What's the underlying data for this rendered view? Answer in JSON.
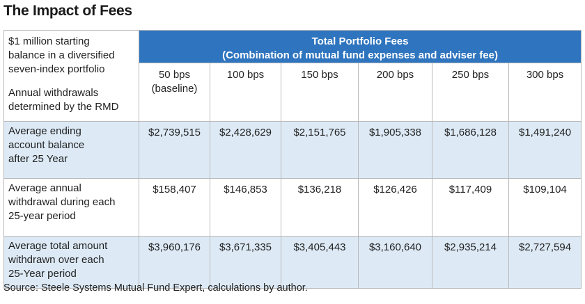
{
  "title": "The Impact of Fees",
  "corner": {
    "line1": "$1 million starting",
    "line2": "balance in a diversified",
    "line3": "seven-index portfolio",
    "line4": "Annual withdrawals",
    "line5": "determined by the RMD"
  },
  "header": {
    "title": "Total Portfolio Fees",
    "subtitle": "(Combination of mutual fund expenses and adviser fee)"
  },
  "columns": [
    {
      "label": "50 bps",
      "note": "(baseline)"
    },
    {
      "label": "100 bps",
      "note": ""
    },
    {
      "label": "150 bps",
      "note": ""
    },
    {
      "label": "200 bps",
      "note": ""
    },
    {
      "label": "250 bps",
      "note": ""
    },
    {
      "label": "300 bps",
      "note": ""
    }
  ],
  "rows": [
    {
      "label_lines": [
        "Average ending",
        "account balance",
        "after 25 Year"
      ],
      "values": [
        "$2,739,515",
        "$2,428,629",
        "$2,151,765",
        "$1,905,338",
        "$1,686,128",
        "$1,491,240"
      ]
    },
    {
      "label_lines": [
        "Average annual",
        "withdrawal during each",
        "25-year period"
      ],
      "values": [
        "$158,407",
        "$146,853",
        "$136,218",
        "$126,426",
        "$117,409",
        "$109,104"
      ]
    },
    {
      "label_lines": [
        "Average total amount",
        "withdrawn over each",
        "25-Year period"
      ],
      "values": [
        "$3,960,176",
        "$3,671,335",
        "$3,405,443",
        "$3,160,640",
        "$2,935,214",
        "$2,727,594"
      ]
    }
  ],
  "source": "Source: Steele Systems Mutual Fund Expert, calculations by author.",
  "colors": {
    "header_blue": "#2e74be",
    "row_shade": "#ddeaf6",
    "border": "#b9b9b9"
  }
}
